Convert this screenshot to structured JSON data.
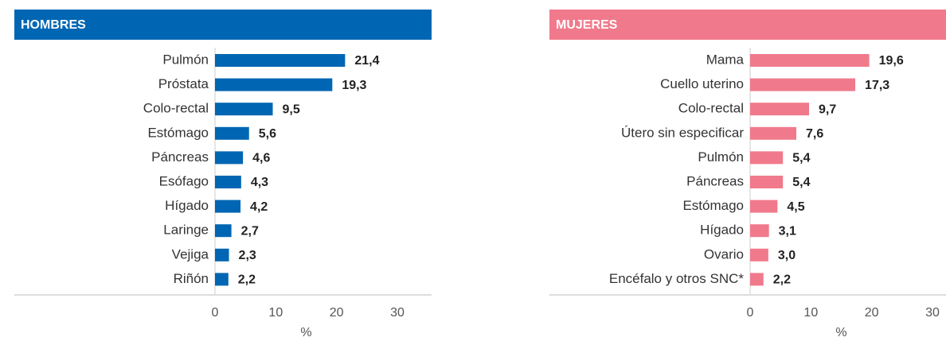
{
  "chart_data": [
    {
      "type": "bar",
      "orientation": "horizontal",
      "title": "HOMBRES",
      "header_color": "#0066b3",
      "color": "#0066b3",
      "categories": [
        "Pulmón",
        "Próstata",
        "Colo-rectal",
        "Estómago",
        "Páncreas",
        "Esófago",
        "Hígado",
        "Laringe",
        "Vejiga",
        "Riñón"
      ],
      "values": [
        21.4,
        19.3,
        9.5,
        5.6,
        4.6,
        4.3,
        4.2,
        2.7,
        2.3,
        2.2
      ],
      "value_labels": [
        "21,4",
        "19,3",
        "9,5",
        "5,6",
        "4,6",
        "4,3",
        "4,2",
        "2,7",
        "2,3",
        "2,2"
      ],
      "xlim": [
        0,
        30
      ],
      "xticks": [
        0,
        10,
        20,
        30
      ],
      "xlabel": "%",
      "grid": false
    },
    {
      "type": "bar",
      "orientation": "horizontal",
      "title": "MUJERES",
      "header_color": "#f07a8c",
      "color": "#f07a8c",
      "categories": [
        "Mama",
        "Cuello uterino",
        "Colo-rectal",
        "Útero sin especificar",
        "Pulmón",
        "Páncreas",
        "Estómago",
        "Hígado",
        "Ovario",
        "Encéfalo y otros SNC*"
      ],
      "values": [
        19.6,
        17.3,
        9.7,
        7.6,
        5.4,
        5.4,
        4.5,
        3.1,
        3.0,
        2.2
      ],
      "value_labels": [
        "19,6",
        "17,3",
        "9,7",
        "7,6",
        "5,4",
        "5,4",
        "4,5",
        "3,1",
        "3,0",
        "2,2"
      ],
      "xlim": [
        0,
        30
      ],
      "xticks": [
        0,
        10,
        20,
        30
      ],
      "xlabel": "%",
      "grid": false
    }
  ]
}
